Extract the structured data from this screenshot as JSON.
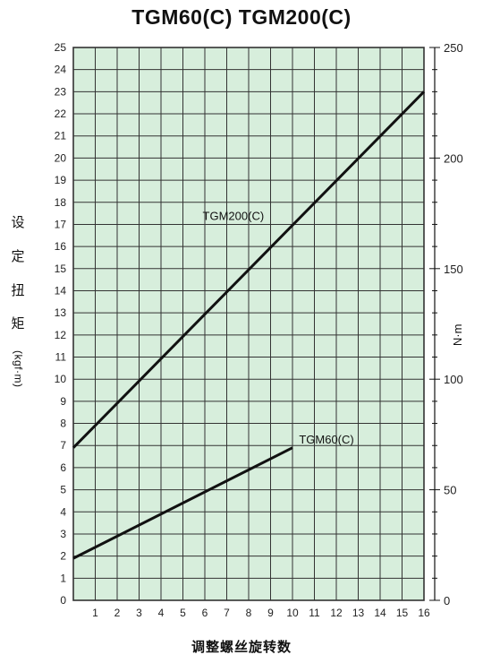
{
  "chart_data": {
    "type": "line",
    "title": "TGM60(C) TGM200(C)",
    "xlabel": "调整螺丝旋转数",
    "ylabel_chars": [
      "设",
      "定",
      "扭",
      "矩"
    ],
    "ylabel_unit": "(kgf·m)",
    "y2label": "N·m",
    "xlim": [
      0,
      16
    ],
    "ylim": [
      0,
      25
    ],
    "y2lim": [
      0,
      250
    ],
    "x_ticks": [
      "1",
      "2",
      "3",
      "4",
      "5",
      "6",
      "7",
      "8",
      "9",
      "10",
      "11",
      "12",
      "13",
      "14",
      "15",
      "16"
    ],
    "y_ticks": [
      "0",
      "1",
      "2",
      "3",
      "4",
      "5",
      "6",
      "7",
      "8",
      "9",
      "10",
      "11",
      "12",
      "13",
      "14",
      "15",
      "16",
      "17",
      "18",
      "19",
      "20",
      "21",
      "22",
      "23",
      "24",
      "25"
    ],
    "y2_ticks": [
      "0",
      "50",
      "100",
      "150",
      "200",
      "250"
    ],
    "grid": true,
    "series": [
      {
        "name": "TGM200(C)",
        "x": [
          0,
          16
        ],
        "y": [
          6.9,
          23
        ]
      },
      {
        "name": "TGM60(C)",
        "x": [
          0,
          10
        ],
        "y": [
          1.9,
          6.9
        ]
      }
    ],
    "colors": {
      "background": "#d7eedc",
      "grid": "#333333",
      "line": "#111111"
    }
  }
}
